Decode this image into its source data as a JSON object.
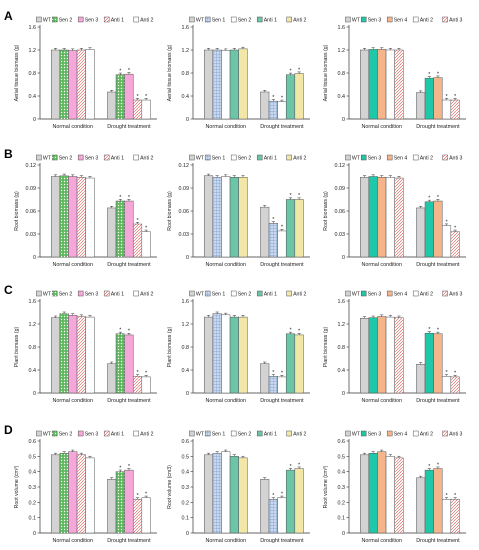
{
  "chart_data": [
    {
      "type": "bar",
      "row_letter": "A",
      "ylabel": "Aerial tissue biomass (g)",
      "ylim": [
        0,
        1.6
      ],
      "yticks": [
        "0",
        "0.4",
        "0.8",
        "1.2",
        "1.6"
      ],
      "categories": [
        "Normal condition",
        "Drought treatment"
      ],
      "series": [
        {
          "name": "WT",
          "color": "#d3d3d3",
          "pattern": "solid",
          "values": [
            1.2,
            0.47
          ],
          "stars": [
            "",
            ""
          ]
        },
        {
          "name": "Sen 2",
          "color": "#5cb85c",
          "pattern": "dots",
          "values": [
            1.2,
            0.77
          ],
          "stars": [
            "",
            "*"
          ]
        },
        {
          "name": "Sen 3",
          "color": "#f4a7d8",
          "pattern": "solid",
          "values": [
            1.19,
            0.78
          ],
          "stars": [
            "",
            "*"
          ]
        },
        {
          "name": "Anti 1",
          "color": "#ffffff",
          "pattern": "hatch",
          "values": [
            1.2,
            0.33
          ],
          "stars": [
            "",
            "*"
          ]
        },
        {
          "name": "Anti 2",
          "color": "#ffffff",
          "pattern": "blank",
          "values": [
            1.21,
            0.33
          ],
          "stars": [
            "",
            "*"
          ]
        }
      ]
    },
    {
      "type": "bar",
      "row_letter": "",
      "ylabel": "Aerial tissue biomass (g)",
      "ylim": [
        0,
        1.6
      ],
      "yticks": [
        "0",
        "0.4",
        "0.8",
        "1.2",
        "1.6"
      ],
      "categories": [
        "Normal condition",
        "Drought treatment"
      ],
      "series": [
        {
          "name": "WT",
          "color": "#d3d3d3",
          "pattern": "solid",
          "values": [
            1.2,
            0.47
          ],
          "stars": [
            "",
            ""
          ]
        },
        {
          "name": "Sen 1",
          "color": "#c7d8f0",
          "pattern": "grid",
          "values": [
            1.2,
            0.31
          ],
          "stars": [
            "",
            "*"
          ]
        },
        {
          "name": "Sen 2",
          "color": "#ffffff",
          "pattern": "blank",
          "values": [
            1.19,
            0.3
          ],
          "stars": [
            "",
            "*"
          ]
        },
        {
          "name": "Anti 1",
          "color": "#6cc5a6",
          "pattern": "solid",
          "values": [
            1.2,
            0.77
          ],
          "stars": [
            "",
            "*"
          ]
        },
        {
          "name": "Anti 2",
          "color": "#f2e7a6",
          "pattern": "solid",
          "values": [
            1.22,
            0.79
          ],
          "stars": [
            "",
            "*"
          ]
        }
      ]
    },
    {
      "type": "bar",
      "row_letter": "",
      "ylabel": "Aerial tissue biomass (g)",
      "ylim": [
        0,
        1.6
      ],
      "yticks": [
        "0",
        "0.4",
        "0.8",
        "1.2",
        "1.6"
      ],
      "categories": [
        "Normal condition",
        "Drought treatment"
      ],
      "series": [
        {
          "name": "WT",
          "color": "#d3d3d3",
          "pattern": "solid",
          "values": [
            1.2,
            0.46
          ],
          "stars": [
            "",
            ""
          ]
        },
        {
          "name": "Sen 3",
          "color": "#1fc8a8",
          "pattern": "solid",
          "values": [
            1.21,
            0.71
          ],
          "stars": [
            "",
            "*"
          ]
        },
        {
          "name": "Sen 4",
          "color": "#f5b48a",
          "pattern": "solid",
          "values": [
            1.21,
            0.72
          ],
          "stars": [
            "",
            "*"
          ]
        },
        {
          "name": "Anti 2",
          "color": "#ffffff",
          "pattern": "blank",
          "values": [
            1.2,
            0.33
          ],
          "stars": [
            "",
            "*"
          ]
        },
        {
          "name": "Anti 3",
          "color": "#ffffff",
          "pattern": "hatch",
          "values": [
            1.2,
            0.33
          ],
          "stars": [
            "",
            "*"
          ]
        }
      ]
    },
    {
      "type": "bar",
      "row_letter": "B",
      "ylabel": "Root biomass (g)",
      "ylim": [
        0,
        0.12
      ],
      "yticks": [
        "0",
        "0.03",
        "0.06",
        "0.09",
        "0.12"
      ],
      "categories": [
        "Normal condition",
        "Drought treatment"
      ],
      "series": [
        {
          "name": "WT",
          "color": "#d3d3d3",
          "pattern": "solid",
          "values": [
            0.105,
            0.064
          ],
          "stars": [
            "",
            ""
          ]
        },
        {
          "name": "Sen 2",
          "color": "#5cb85c",
          "pattern": "dots",
          "values": [
            0.106,
            0.073
          ],
          "stars": [
            "",
            "*"
          ]
        },
        {
          "name": "Sen 3",
          "color": "#f4a7d8",
          "pattern": "solid",
          "values": [
            0.105,
            0.073
          ],
          "stars": [
            "",
            "*"
          ]
        },
        {
          "name": "Anti 1",
          "color": "#ffffff",
          "pattern": "hatch",
          "values": [
            0.104,
            0.043
          ],
          "stars": [
            "",
            "*"
          ]
        },
        {
          "name": "Anti 2",
          "color": "#ffffff",
          "pattern": "blank",
          "values": [
            0.103,
            0.033
          ],
          "stars": [
            "",
            "*"
          ]
        }
      ]
    },
    {
      "type": "bar",
      "row_letter": "",
      "ylabel": "Root biomass (g)",
      "ylim": [
        0,
        0.12
      ],
      "yticks": [
        "0",
        "0.03",
        "0.06",
        "0.09",
        "0.12"
      ],
      "categories": [
        "Normal condition",
        "Drought treatment"
      ],
      "series": [
        {
          "name": "WT",
          "color": "#d3d3d3",
          "pattern": "solid",
          "values": [
            0.106,
            0.065
          ],
          "stars": [
            "",
            ""
          ]
        },
        {
          "name": "Sen 1",
          "color": "#c7d8f0",
          "pattern": "grid",
          "values": [
            0.104,
            0.044
          ],
          "stars": [
            "",
            "*"
          ]
        },
        {
          "name": "Sen 2",
          "color": "#ffffff",
          "pattern": "blank",
          "values": [
            0.105,
            0.034
          ],
          "stars": [
            "",
            "*"
          ]
        },
        {
          "name": "Anti 1",
          "color": "#6cc5a6",
          "pattern": "solid",
          "values": [
            0.104,
            0.075
          ],
          "stars": [
            "",
            "*"
          ]
        },
        {
          "name": "Anti 2",
          "color": "#f2e7a6",
          "pattern": "solid",
          "values": [
            0.104,
            0.075
          ],
          "stars": [
            "",
            "*"
          ]
        }
      ]
    },
    {
      "type": "bar",
      "row_letter": "",
      "ylabel": "Root biomass (g)",
      "ylim": [
        0,
        0.12
      ],
      "yticks": [
        "0",
        "0.03",
        "0.06",
        "0.09",
        "0.12"
      ],
      "categories": [
        "Normal condition",
        "Drought treatment"
      ],
      "series": [
        {
          "name": "WT",
          "color": "#d3d3d3",
          "pattern": "solid",
          "values": [
            0.104,
            0.064
          ],
          "stars": [
            "",
            ""
          ]
        },
        {
          "name": "Sen 3",
          "color": "#1fc8a8",
          "pattern": "solid",
          "values": [
            0.105,
            0.072
          ],
          "stars": [
            "",
            "*"
          ]
        },
        {
          "name": "Sen 4",
          "color": "#f5b48a",
          "pattern": "solid",
          "values": [
            0.104,
            0.073
          ],
          "stars": [
            "",
            "*"
          ]
        },
        {
          "name": "Anti 2",
          "color": "#ffffff",
          "pattern": "blank",
          "values": [
            0.104,
            0.041
          ],
          "stars": [
            "",
            "*"
          ]
        },
        {
          "name": "Anti 3",
          "color": "#ffffff",
          "pattern": "hatch",
          "values": [
            0.103,
            0.033
          ],
          "stars": [
            "",
            "*"
          ]
        }
      ]
    },
    {
      "type": "bar",
      "row_letter": "C",
      "ylabel": "Plant biomass (g)",
      "ylim": [
        0,
        1.6
      ],
      "yticks": [
        "0",
        "0.4",
        "0.8",
        "1.2",
        "1.6"
      ],
      "categories": [
        "Normal condition",
        "Drought treatment"
      ],
      "series": [
        {
          "name": "WT",
          "color": "#d3d3d3",
          "pattern": "solid",
          "values": [
            1.31,
            0.51
          ],
          "stars": [
            "",
            ""
          ]
        },
        {
          "name": "Sen 2",
          "color": "#5cb85c",
          "pattern": "dots",
          "values": [
            1.38,
            1.03
          ],
          "stars": [
            "",
            "*"
          ]
        },
        {
          "name": "Sen 3",
          "color": "#f4a7d8",
          "pattern": "solid",
          "values": [
            1.35,
            1.01
          ],
          "stars": [
            "",
            "*"
          ]
        },
        {
          "name": "Anti 1",
          "color": "#ffffff",
          "pattern": "hatch",
          "values": [
            1.33,
            0.29
          ],
          "stars": [
            "",
            "*"
          ]
        },
        {
          "name": "Anti 2",
          "color": "#ffffff",
          "pattern": "blank",
          "values": [
            1.32,
            0.28
          ],
          "stars": [
            "",
            "*"
          ]
        }
      ]
    },
    {
      "type": "bar",
      "row_letter": "",
      "ylabel": "Plant biomass (g)",
      "ylim": [
        0,
        1.6
      ],
      "yticks": [
        "0",
        "0.4",
        "0.8",
        "1.2",
        "1.6"
      ],
      "categories": [
        "Normal condition",
        "Drought treatment"
      ],
      "series": [
        {
          "name": "WT",
          "color": "#d3d3d3",
          "pattern": "solid",
          "values": [
            1.32,
            0.51
          ],
          "stars": [
            "",
            ""
          ]
        },
        {
          "name": "Sen 1",
          "color": "#c7d8f0",
          "pattern": "grid",
          "values": [
            1.38,
            0.29
          ],
          "stars": [
            "",
            "*"
          ]
        },
        {
          "name": "Sen 2",
          "color": "#ffffff",
          "pattern": "blank",
          "values": [
            1.36,
            0.28
          ],
          "stars": [
            "",
            "*"
          ]
        },
        {
          "name": "Anti 1",
          "color": "#6cc5a6",
          "pattern": "solid",
          "values": [
            1.32,
            1.03
          ],
          "stars": [
            "",
            "*"
          ]
        },
        {
          "name": "Anti 2",
          "color": "#f2e7a6",
          "pattern": "solid",
          "values": [
            1.32,
            1.01
          ],
          "stars": [
            "",
            "*"
          ]
        }
      ]
    },
    {
      "type": "bar",
      "row_letter": "",
      "ylabel": "Plant biomass (g)",
      "ylim": [
        0,
        1.6
      ],
      "yticks": [
        "0",
        "0.4",
        "0.8",
        "1.2",
        "1.6"
      ],
      "categories": [
        "Normal condition",
        "Drought treatment"
      ],
      "series": [
        {
          "name": "WT",
          "color": "#d3d3d3",
          "pattern": "solid",
          "values": [
            1.3,
            0.5
          ],
          "stars": [
            "",
            ""
          ]
        },
        {
          "name": "Sen 3",
          "color": "#1fc8a8",
          "pattern": "solid",
          "values": [
            1.31,
            1.04
          ],
          "stars": [
            "",
            "*"
          ]
        },
        {
          "name": "Sen 4",
          "color": "#f5b48a",
          "pattern": "solid",
          "values": [
            1.33,
            1.03
          ],
          "stars": [
            "",
            "*"
          ]
        },
        {
          "name": "Anti 2",
          "color": "#ffffff",
          "pattern": "blank",
          "values": [
            1.32,
            0.29
          ],
          "stars": [
            "",
            "*"
          ]
        },
        {
          "name": "Anti 3",
          "color": "#ffffff",
          "pattern": "hatch",
          "values": [
            1.31,
            0.28
          ],
          "stars": [
            "",
            "*"
          ]
        }
      ]
    },
    {
      "type": "bar",
      "row_letter": "D",
      "ylabel": "Root volume (cm³)",
      "ylim": [
        0,
        0.6
      ],
      "yticks": [
        "0",
        "0.1",
        "0.2",
        "0.3",
        "0.4",
        "0.5",
        "0.6"
      ],
      "categories": [
        "Normal condition",
        "Drought treatment"
      ],
      "series": [
        {
          "name": "WT",
          "color": "#d3d3d3",
          "pattern": "solid",
          "values": [
            0.51,
            0.35
          ],
          "stars": [
            "",
            ""
          ]
        },
        {
          "name": "Sen 2",
          "color": "#5cb85c",
          "pattern": "dots",
          "values": [
            0.52,
            0.4
          ],
          "stars": [
            "",
            "*"
          ]
        },
        {
          "name": "Sen 3",
          "color": "#f4a7d8",
          "pattern": "solid",
          "values": [
            0.53,
            0.41
          ],
          "stars": [
            "",
            "*"
          ]
        },
        {
          "name": "Anti 1",
          "color": "#ffffff",
          "pattern": "hatch",
          "values": [
            0.51,
            0.22
          ],
          "stars": [
            "",
            "*"
          ]
        },
        {
          "name": "Anti 2",
          "color": "#ffffff",
          "pattern": "blank",
          "values": [
            0.49,
            0.23
          ],
          "stars": [
            "",
            "*"
          ]
        }
      ]
    },
    {
      "type": "bar",
      "row_letter": "",
      "ylabel": "Root volume (cm3)",
      "ylim": [
        0,
        0.6
      ],
      "yticks": [
        "0",
        "0.1",
        "0.2",
        "0.3",
        "0.4",
        "0.5",
        "0.6"
      ],
      "categories": [
        "Normal condition",
        "Drought treatment"
      ],
      "series": [
        {
          "name": "WT",
          "color": "#d3d3d3",
          "pattern": "solid",
          "values": [
            0.51,
            0.35
          ],
          "stars": [
            "",
            ""
          ]
        },
        {
          "name": "Sen 1",
          "color": "#c7d8f0",
          "pattern": "grid",
          "values": [
            0.52,
            0.22
          ],
          "stars": [
            "",
            "*"
          ]
        },
        {
          "name": "Sen 2",
          "color": "#ffffff",
          "pattern": "blank",
          "values": [
            0.53,
            0.23
          ],
          "stars": [
            "",
            "*"
          ]
        },
        {
          "name": "Anti 1",
          "color": "#6cc5a6",
          "pattern": "solid",
          "values": [
            0.5,
            0.41
          ],
          "stars": [
            "",
            "*"
          ]
        },
        {
          "name": "Anti 2",
          "color": "#f2e7a6",
          "pattern": "solid",
          "values": [
            0.49,
            0.42
          ],
          "stars": [
            "",
            "*"
          ]
        }
      ]
    },
    {
      "type": "bar",
      "row_letter": "",
      "ylabel": "Root volume (cm³)",
      "ylim": [
        0,
        0.6
      ],
      "yticks": [
        "0",
        "0.1",
        "0.2",
        "0.3",
        "0.4",
        "0.5",
        "0.6"
      ],
      "categories": [
        "Normal condition",
        "Drought treatment"
      ],
      "series": [
        {
          "name": "WT",
          "color": "#d3d3d3",
          "pattern": "solid",
          "values": [
            0.51,
            0.36
          ],
          "stars": [
            "",
            ""
          ]
        },
        {
          "name": "Sen 3",
          "color": "#1fc8a8",
          "pattern": "solid",
          "values": [
            0.52,
            0.41
          ],
          "stars": [
            "",
            "*"
          ]
        },
        {
          "name": "Sen 4",
          "color": "#f5b48a",
          "pattern": "solid",
          "values": [
            0.53,
            0.42
          ],
          "stars": [
            "",
            "*"
          ]
        },
        {
          "name": "Anti 2",
          "color": "#ffffff",
          "pattern": "blank",
          "values": [
            0.5,
            0.22
          ],
          "stars": [
            "",
            "*"
          ]
        },
        {
          "name": "Anti 3",
          "color": "#ffffff",
          "pattern": "hatch",
          "values": [
            0.49,
            0.22
          ],
          "stars": [
            "",
            "*"
          ]
        }
      ]
    }
  ]
}
